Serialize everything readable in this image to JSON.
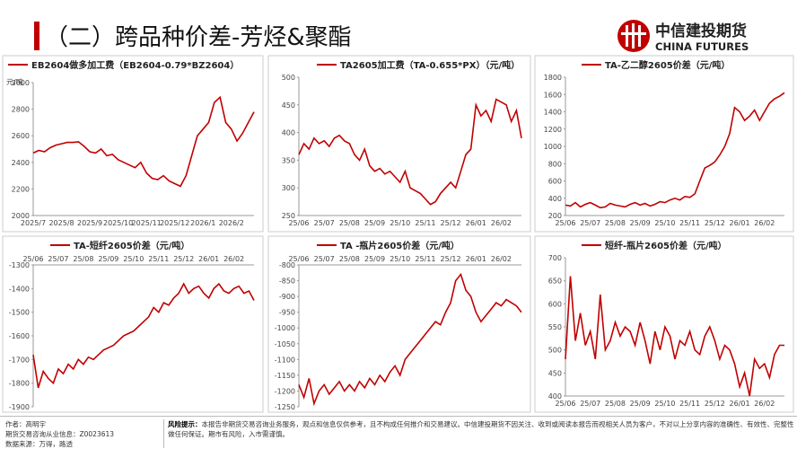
{
  "header": {
    "title": "（二）跨品种价差-芳烃&聚酯",
    "logo_cn": "中信建投期货",
    "logo_en": "CHINA FUTURES"
  },
  "footer": {
    "author": "作者：高明宇",
    "license": "期货交易咨询从业信息：Z0023613",
    "source": "数据来源：万得，路透",
    "risk_label": "风险提示：",
    "risk_text": "本报告非期货交易咨询业务服务，观点和信息仅供参考，且不构成任何推介和交易建议。中信建投期货不因关注、收到或阅读本报告而视相关人员为客户，不对以上分享内容的准确性、有效性、完整性做任何保证。期市有风险，入市需谨慎。"
  },
  "chart_data": [
    {
      "type": "line",
      "legend": "top-left",
      "xaxis": "bottom",
      "y_label": "元/吨",
      "ylim": [
        2000,
        3000
      ],
      "yticks": [
        2000,
        2200,
        2400,
        2600,
        2800,
        3000
      ],
      "categories": [
        "2025/7",
        null,
        null,
        null,
        null,
        "2025/8",
        null,
        null,
        null,
        null,
        "2025/9",
        null,
        null,
        null,
        null,
        "2025/10",
        null,
        null,
        null,
        null,
        "2025/11",
        null,
        null,
        null,
        null,
        "2025/12",
        null,
        null,
        null,
        null,
        "2026/1",
        null,
        null,
        null,
        null,
        "2026/2",
        null,
        null,
        null,
        null
      ],
      "series": [
        {
          "name": "EB2604做多加工费（EB2604-0.79*BZ2604）",
          "color": "#c00000",
          "values": [
            2470,
            2490,
            2480,
            2510,
            2530,
            2540,
            2550,
            2550,
            2555,
            2520,
            2480,
            2470,
            2500,
            2450,
            2460,
            2420,
            2400,
            2380,
            2360,
            2400,
            2320,
            2280,
            2270,
            2300,
            2260,
            2240,
            2220,
            2300,
            2450,
            2600,
            2650,
            2700,
            2850,
            2890,
            2700,
            2650,
            2560,
            2620,
            2700,
            2780
          ]
        }
      ]
    },
    {
      "type": "line",
      "legend": "top",
      "xaxis": "bottom",
      "ylim": [
        250,
        500
      ],
      "yticks": [
        250,
        300,
        350,
        400,
        450,
        500
      ],
      "categories": [
        "25/06",
        null,
        null,
        null,
        null,
        "25/07",
        null,
        null,
        null,
        null,
        "25/08",
        null,
        null,
        null,
        null,
        "25/09",
        null,
        null,
        null,
        null,
        "25/10",
        null,
        null,
        null,
        null,
        "25/11",
        null,
        null,
        null,
        null,
        "25/12",
        null,
        null,
        null,
        null,
        "26/01",
        null,
        null,
        null,
        null,
        "26/02",
        null,
        null,
        null,
        null
      ],
      "series": [
        {
          "name": "TA2605加工费（TA-0.655*PX）（元/吨）",
          "color": "#c00000",
          "values": [
            360,
            380,
            370,
            390,
            380,
            385,
            375,
            390,
            395,
            385,
            380,
            360,
            350,
            370,
            340,
            330,
            335,
            325,
            330,
            320,
            310,
            330,
            300,
            295,
            290,
            280,
            270,
            275,
            290,
            300,
            310,
            300,
            330,
            360,
            370,
            450,
            430,
            440,
            420,
            460,
            455,
            450,
            420,
            440,
            390
          ]
        }
      ]
    },
    {
      "type": "line",
      "legend": "top",
      "xaxis": "bottom",
      "ylim": [
        200,
        1800
      ],
      "yticks": [
        200,
        400,
        600,
        800,
        1000,
        1200,
        1400,
        1600,
        1800
      ],
      "categories": [
        "25/06",
        null,
        null,
        null,
        null,
        "25/07",
        null,
        null,
        null,
        null,
        "25/08",
        null,
        null,
        null,
        null,
        "25/09",
        null,
        null,
        null,
        null,
        "25/10",
        null,
        null,
        null,
        null,
        "25/11",
        null,
        null,
        null,
        null,
        "25/12",
        null,
        null,
        null,
        null,
        "26/01",
        null,
        null,
        null,
        null,
        "26/02",
        null,
        null,
        null,
        null
      ],
      "series": [
        {
          "name": "TA-乙二醇2605价差（元/吨）",
          "color": "#c00000",
          "values": [
            320,
            310,
            350,
            300,
            330,
            350,
            320,
            290,
            300,
            340,
            320,
            310,
            300,
            330,
            350,
            320,
            340,
            310,
            330,
            360,
            350,
            380,
            400,
            380,
            420,
            410,
            450,
            600,
            750,
            780,
            820,
            900,
            1000,
            1150,
            1450,
            1400,
            1300,
            1350,
            1420,
            1300,
            1400,
            1500,
            1550,
            1580,
            1620
          ]
        }
      ]
    },
    {
      "type": "line",
      "legend": "top",
      "xaxis": "top",
      "ylim": [
        -1900,
        -1300
      ],
      "yticks": [
        -1900,
        -1800,
        -1700,
        -1600,
        -1500,
        -1400,
        -1300
      ],
      "categories": [
        "25/06",
        null,
        null,
        null,
        null,
        "25/07",
        null,
        null,
        null,
        null,
        "25/08",
        null,
        null,
        null,
        null,
        "25/09",
        null,
        null,
        null,
        null,
        "25/10",
        null,
        null,
        null,
        null,
        "25/11",
        null,
        null,
        null,
        null,
        "25/12",
        null,
        null,
        null,
        null,
        "26/01",
        null,
        null,
        null,
        null,
        "26/02",
        null,
        null,
        null,
        null
      ],
      "series": [
        {
          "name": "TA-短纤2605价差（元/吨）",
          "color": "#c00000",
          "values": [
            -1680,
            -1820,
            -1750,
            -1780,
            -1800,
            -1740,
            -1760,
            -1720,
            -1740,
            -1700,
            -1720,
            -1690,
            -1700,
            -1680,
            -1660,
            -1650,
            -1640,
            -1620,
            -1600,
            -1590,
            -1580,
            -1560,
            -1540,
            -1520,
            -1480,
            -1500,
            -1460,
            -1470,
            -1440,
            -1420,
            -1380,
            -1420,
            -1400,
            -1390,
            -1420,
            -1440,
            -1400,
            -1380,
            -1410,
            -1420,
            -1400,
            -1390,
            -1420,
            -1410,
            -1450
          ]
        }
      ]
    },
    {
      "type": "line",
      "legend": "top",
      "xaxis": "top",
      "ylim": [
        -1250,
        -800
      ],
      "yticks": [
        -1250,
        -1200,
        -1150,
        -1100,
        -1050,
        -1000,
        -950,
        -900,
        -850,
        -800
      ],
      "categories": [
        "25/06",
        null,
        null,
        null,
        null,
        "25/07",
        null,
        null,
        null,
        null,
        "25/08",
        null,
        null,
        null,
        null,
        "25/09",
        null,
        null,
        null,
        null,
        "25/10",
        null,
        null,
        null,
        null,
        "25/11",
        null,
        null,
        null,
        null,
        "25/12",
        null,
        null,
        null,
        null,
        "26/01",
        null,
        null,
        null,
        null,
        "26/02",
        null,
        null,
        null,
        null
      ],
      "series": [
        {
          "name": "TA -瓶片2605价差（元/吨）",
          "color": "#c00000",
          "values": [
            -1180,
            -1220,
            -1160,
            -1240,
            -1200,
            -1180,
            -1210,
            -1190,
            -1170,
            -1200,
            -1180,
            -1200,
            -1170,
            -1190,
            -1160,
            -1180,
            -1150,
            -1170,
            -1140,
            -1120,
            -1150,
            -1100,
            -1080,
            -1060,
            -1040,
            -1020,
            -1000,
            -980,
            -990,
            -950,
            -920,
            -850,
            -830,
            -880,
            -900,
            -950,
            -980,
            -960,
            -940,
            -920,
            -930,
            -910,
            -920,
            -930,
            -950
          ]
        }
      ]
    },
    {
      "type": "line",
      "legend": "top",
      "xaxis": "bottom",
      "ylim": [
        400,
        700
      ],
      "yticks": [
        400,
        450,
        500,
        550,
        600,
        650,
        700
      ],
      "categories": [
        "25/06",
        null,
        null,
        null,
        null,
        "25/07",
        null,
        null,
        null,
        null,
        "25/08",
        null,
        null,
        null,
        null,
        "25/09",
        null,
        null,
        null,
        null,
        "25/10",
        null,
        null,
        null,
        null,
        "25/11",
        null,
        null,
        null,
        null,
        "25/12",
        null,
        null,
        null,
        null,
        "26/01",
        null,
        null,
        null,
        null,
        "26/02",
        null,
        null,
        null,
        null
      ],
      "series": [
        {
          "name": "短纤-瓶片2605价差（元/吨）",
          "color": "#c00000",
          "values": [
            480,
            660,
            520,
            580,
            510,
            540,
            480,
            620,
            500,
            520,
            560,
            530,
            550,
            540,
            510,
            560,
            520,
            470,
            540,
            500,
            550,
            530,
            480,
            520,
            510,
            540,
            500,
            490,
            530,
            550,
            520,
            480,
            510,
            500,
            470,
            420,
            450,
            400,
            480,
            460,
            470,
            440,
            490,
            510,
            510
          ]
        }
      ]
    }
  ]
}
